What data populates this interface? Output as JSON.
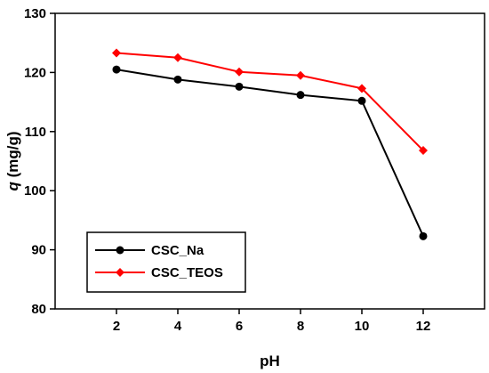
{
  "chart_data": {
    "type": "line",
    "title": "",
    "xlabel": "pH",
    "ylabel": "q (mg/g)",
    "ylabel_italic_part": "q",
    "ylabel_rest": " (mg/g)",
    "x": [
      2,
      4,
      6,
      8,
      10,
      12
    ],
    "xlim": [
      0,
      14
    ],
    "ylim": [
      80,
      130
    ],
    "xticks": [
      2,
      4,
      6,
      8,
      10,
      12
    ],
    "yticks": [
      80,
      90,
      100,
      110,
      120,
      130
    ],
    "grid": false,
    "legend_position": "bottom-left",
    "series": [
      {
        "name": "CSC_Na",
        "values": [
          120.5,
          118.8,
          117.6,
          116.2,
          115.2,
          92.3
        ],
        "color": "#000000",
        "marker": "circle"
      },
      {
        "name": "CSC_TEOS",
        "values": [
          123.3,
          122.5,
          120.1,
          119.5,
          117.3,
          106.8
        ],
        "color": "#ff0000",
        "marker": "diamond"
      }
    ]
  }
}
